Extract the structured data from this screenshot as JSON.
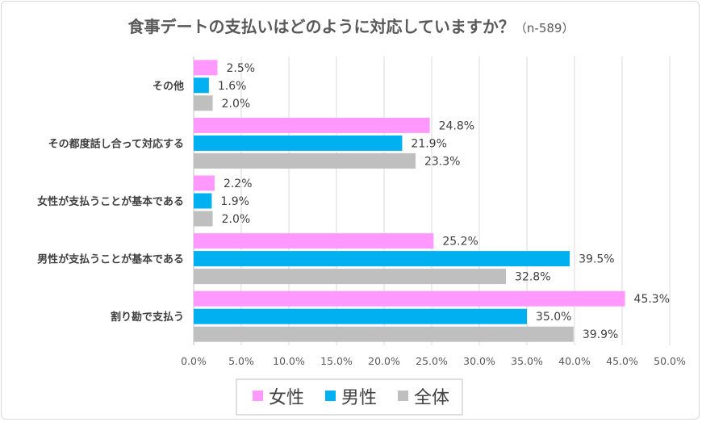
{
  "chart_data": {
    "type": "bar",
    "orientation": "horizontal",
    "title": "食事デートの支払いはどのように対応していますか？",
    "subtitle": "（n-589）",
    "categories": [
      "その他",
      "その都度話し合って対応する",
      "女性が支払うことが基本である",
      "男性が支払うことが基本である",
      "割り勘で支払う"
    ],
    "series": [
      {
        "name": "女性",
        "color": "#ff99ff",
        "values": [
          2.5,
          24.8,
          2.2,
          25.2,
          45.3
        ]
      },
      {
        "name": "男性",
        "color": "#00b0f0",
        "values": [
          1.6,
          21.9,
          1.9,
          39.5,
          35.0
        ]
      },
      {
        "name": "全体",
        "color": "#bfbfbf",
        "values": [
          2.0,
          23.3,
          2.0,
          32.8,
          39.9
        ]
      }
    ],
    "xlim": [
      0,
      50
    ],
    "xticks": [
      "0.0%",
      "5.0%",
      "10.0%",
      "15.0%",
      "20.0%",
      "25.0%",
      "30.0%",
      "35.0%",
      "40.0%",
      "45.0%",
      "50.0%"
    ],
    "value_format": "percent_1dp",
    "grid": "vertical",
    "legend": "bottom"
  }
}
